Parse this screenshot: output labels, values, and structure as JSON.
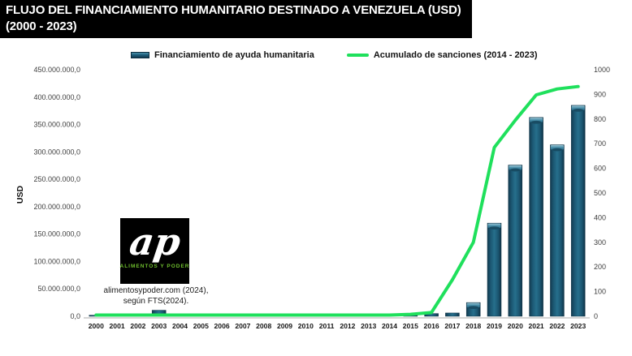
{
  "title": {
    "line1": "FLUJO DEL FINANCIAMIENTO HUMANITARIO DESTINADO A VENEZUELA (USD)",
    "line2": "(2000 - 2023)"
  },
  "legend": {
    "bar_label": "Financiamiento de ayuda humanitaria",
    "line_label": "Acumulado de sanciones (2014 - 2023)"
  },
  "logo": {
    "monogram": "ap",
    "text": "ALIMENTOS Y PODER"
  },
  "source": {
    "line1": "alimentosypoder.com (2024),",
    "line2": "según FTS(2024)."
  },
  "chart_data": {
    "type": "bar",
    "title": "FLUJO DEL FINANCIAMIENTO HUMANITARIO DESTINADO A VENEZUELA (USD) (2000 - 2023)",
    "categories": [
      "2000",
      "2001",
      "2002",
      "2003",
      "2004",
      "2005",
      "2006",
      "2007",
      "2008",
      "2009",
      "2010",
      "2011",
      "2012",
      "2013",
      "2014",
      "2015",
      "2016",
      "2017",
      "2018",
      "2019",
      "2020",
      "2021",
      "2022",
      "2023"
    ],
    "series": [
      {
        "name": "Financiamiento de ayuda humanitaria",
        "type": "bar",
        "axis": "left",
        "values": [
          2000000,
          0,
          3000000,
          11000000,
          0,
          0,
          0,
          0,
          0,
          0,
          0,
          0,
          0,
          0,
          0,
          3000000,
          5000000,
          6000000,
          25000000,
          170000000,
          276000000,
          363000000,
          313000000,
          385000000
        ]
      },
      {
        "name": "Acumulado de sanciones (2014 - 2023)",
        "type": "line",
        "axis": "right",
        "values": [
          0,
          0,
          0,
          0,
          0,
          0,
          0,
          0,
          0,
          0,
          0,
          0,
          0,
          0,
          3,
          8,
          15,
          148,
          300,
          685,
          795,
          898,
          922,
          932
        ]
      }
    ],
    "left_axis": {
      "label": "USD",
      "min": 0,
      "max": 450000000,
      "tick_labels": [
        "0,0",
        "50.000.000,0",
        "100.000.000,0",
        "150.000.000,0",
        "200.000.000,0",
        "250.000.000,0",
        "300.000.000,0",
        "350.000.000,0",
        "400.000.000,0",
        "450.000.000,0"
      ]
    },
    "right_axis": {
      "min": 0,
      "max": 1000,
      "tick_labels": [
        "0",
        "100",
        "200",
        "300",
        "400",
        "500",
        "600",
        "700",
        "800",
        "900",
        "1000"
      ]
    },
    "grid": false,
    "legend_position": "top",
    "colors": {
      "bar_mid": "#1d5f7d",
      "bar_edge": "#133b50",
      "bar_highlight": "#4e93ad",
      "line": "#1fe05c",
      "axis_line": "#d5d5d5",
      "tick_text": "#3d3d3d",
      "year_text": "#161616"
    }
  }
}
